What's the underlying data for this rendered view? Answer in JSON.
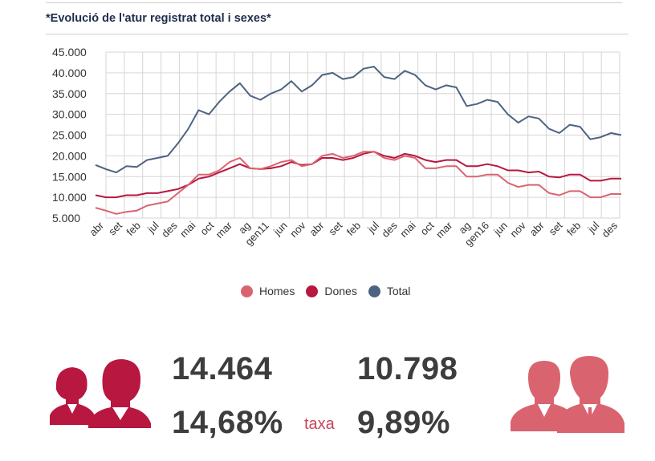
{
  "title": "*Evolució de l'atur registrat total i sexes*",
  "legend": [
    {
      "label": "Homes",
      "color": "#d9646f"
    },
    {
      "label": "Dones",
      "color": "#b8173f"
    },
    {
      "label": "Total",
      "color": "#4e6381"
    }
  ],
  "stats": {
    "women_count": "14.464",
    "men_count": "10.798",
    "women_rate": "14,68%",
    "men_rate": "9,89%",
    "rate_label": "taxa"
  },
  "icons": {
    "women": "women-silhouette-icon",
    "men": "men-silhouette-icon"
  },
  "chart_data": {
    "type": "line",
    "ylim": [
      5000,
      45000
    ],
    "yticks": [
      "45.000",
      "40.000",
      "35.000",
      "30.000",
      "25.000",
      "20.000",
      "15.000",
      "10.000",
      "5.000"
    ],
    "ytick_values": [
      45000,
      40000,
      35000,
      30000,
      25000,
      20000,
      15000,
      10000,
      5000
    ],
    "xtick_labels": [
      "abr",
      "set",
      "feb",
      "jul",
      "des",
      "mai",
      "oct",
      "mar",
      "ag",
      "gen11",
      "jun",
      "nov",
      "abr",
      "set",
      "feb",
      "jul",
      "des",
      "mai",
      "oct",
      "mar",
      "ag",
      "gen16",
      "jun",
      "nov",
      "abr",
      "set",
      "feb",
      "jul",
      "des"
    ],
    "grid": true,
    "series": [
      {
        "name": "Total",
        "color": "#4e6381",
        "values": [
          17800,
          16800,
          16000,
          17500,
          17300,
          19000,
          19500,
          20000,
          23000,
          26500,
          31000,
          30000,
          33000,
          35500,
          37500,
          34500,
          33500,
          35000,
          36000,
          38000,
          35500,
          37000,
          39500,
          40000,
          38500,
          39000,
          41000,
          41500,
          39000,
          38500,
          40500,
          39500,
          37000,
          36000,
          37000,
          36500,
          32000,
          32500,
          33500,
          33000,
          30000,
          28000,
          29500,
          29000,
          26500,
          25500,
          27500,
          27000,
          24000,
          24500,
          25500,
          25000
        ]
      },
      {
        "name": "Dones",
        "color": "#b8173f",
        "values": [
          10500,
          10000,
          10000,
          10500,
          10500,
          11000,
          11000,
          11500,
          12000,
          13000,
          14500,
          15000,
          16000,
          17000,
          18000,
          17000,
          16800,
          17000,
          17500,
          18500,
          17800,
          18000,
          19500,
          19500,
          19000,
          19500,
          20500,
          21000,
          20000,
          19500,
          20500,
          20000,
          19000,
          18500,
          19000,
          19000,
          17500,
          17500,
          18000,
          17500,
          16500,
          16500,
          16000,
          16200,
          15000,
          14800,
          15500,
          15500,
          14000,
          14000,
          14500,
          14500
        ]
      },
      {
        "name": "Homes",
        "color": "#d9646f",
        "values": [
          7500,
          6800,
          6000,
          6500,
          6800,
          8000,
          8500,
          9000,
          11000,
          13000,
          15500,
          15500,
          16500,
          18500,
          19500,
          17000,
          16800,
          17500,
          18500,
          19000,
          17500,
          18000,
          20000,
          20500,
          19500,
          20000,
          21000,
          21000,
          19500,
          19000,
          20000,
          19500,
          17000,
          17000,
          17500,
          17500,
          15000,
          15000,
          15500,
          15500,
          13500,
          12500,
          13000,
          13000,
          11000,
          10500,
          11500,
          11500,
          10000,
          10000,
          10800,
          10800
        ]
      }
    ]
  }
}
